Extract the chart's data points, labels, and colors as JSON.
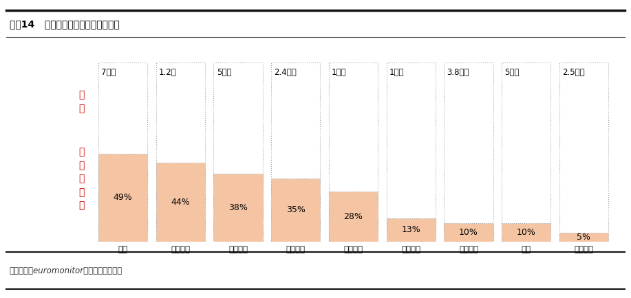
{
  "title": "图表14   各品类行业规模和电商渗透率",
  "categories": [
    "家电",
    "消费电子",
    "美妆个护",
    "服饰鞋履",
    "家庭清洁",
    "个人配饰",
    "食品饮料",
    "生鲜",
    "家居家装"
  ],
  "sizes": [
    "7千亿",
    "1.2亿",
    "5千亿",
    "2.4万亿",
    "1万亿",
    "1万亿",
    "3.8万亿",
    "5万亿",
    "2.5万亿"
  ],
  "penetration_rates": [
    49,
    44,
    38,
    35,
    28,
    13,
    10,
    10,
    5
  ],
  "bar_color_filled": "#F5C5A3",
  "bar_color_empty": "#FFFFFF",
  "bar_edge_color": "#AAAAAA",
  "bar_edge_style": "dotted",
  "bar_width": 0.85,
  "label_规模": "规\n模",
  "label_电商": "电\n商\n渗\n透\n率",
  "source_text": "资料来源：euromonitor，平安证券研究所",
  "background_color": "#FFFFFF",
  "title_fontsize": 10,
  "cat_fontsize": 8.5,
  "size_fontsize": 8.5,
  "rate_fontsize": 9,
  "ylabel_fontsize": 10,
  "source_fontsize": 8.5,
  "ylabel_color": "#CC0000",
  "text_color": "#333333"
}
